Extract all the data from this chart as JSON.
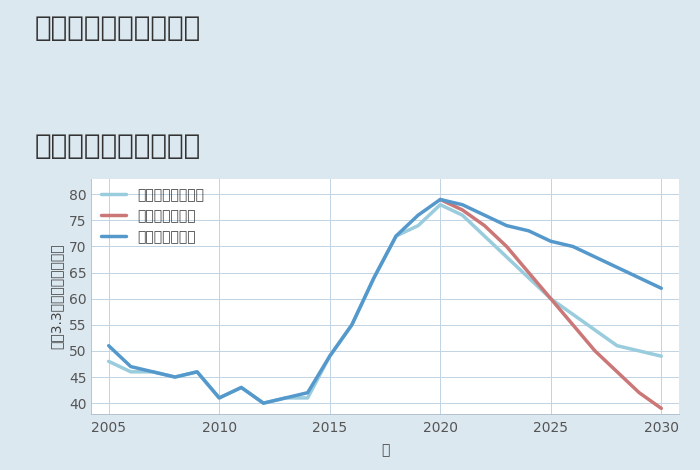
{
  "title_line1": "大阪府枚方市渚南町の",
  "title_line2": "中古戸建ての価格推移",
  "xlabel": "年",
  "ylabel": "坪（3.3㎡）単価（万円）",
  "outer_bg": "#dce8f0",
  "plot_bg": "#ffffff",
  "grid_color": "#c0d4e4",
  "good_scenario": {
    "label": "グッドシナリオ",
    "color": "#5599cc",
    "years": [
      2005,
      2006,
      2007,
      2008,
      2009,
      2010,
      2011,
      2012,
      2013,
      2014,
      2015,
      2016,
      2017,
      2018,
      2019,
      2020,
      2021,
      2022,
      2023,
      2024,
      2025,
      2026,
      2027,
      2028,
      2029,
      2030
    ],
    "values": [
      51,
      47,
      46,
      45,
      46,
      41,
      43,
      40,
      41,
      42,
      49,
      55,
      64,
      72,
      76,
      79,
      78,
      76,
      74,
      73,
      71,
      70,
      68,
      66,
      64,
      62
    ]
  },
  "bad_scenario": {
    "label": "バッドシナリオ",
    "color": "#cc7777",
    "years": [
      2020,
      2021,
      2022,
      2023,
      2024,
      2025,
      2026,
      2027,
      2028,
      2029,
      2030
    ],
    "values": [
      79,
      77,
      74,
      70,
      65,
      60,
      55,
      50,
      46,
      42,
      39
    ]
  },
  "normal_scenario": {
    "label": "ノーマルシナリオ",
    "color": "#99ccdd",
    "years": [
      2005,
      2006,
      2007,
      2008,
      2009,
      2010,
      2011,
      2012,
      2013,
      2014,
      2015,
      2016,
      2017,
      2018,
      2019,
      2020,
      2021,
      2022,
      2023,
      2024,
      2025,
      2026,
      2027,
      2028,
      2029,
      2030
    ],
    "values": [
      48,
      46,
      46,
      45,
      46,
      41,
      43,
      40,
      41,
      41,
      49,
      55,
      64,
      72,
      74,
      78,
      76,
      72,
      68,
      64,
      60,
      57,
      54,
      51,
      50,
      49
    ]
  },
  "xlim": [
    2004.2,
    2030.8
  ],
  "ylim": [
    38,
    83
  ],
  "xticks": [
    2005,
    2010,
    2015,
    2020,
    2025,
    2030
  ],
  "yticks": [
    40,
    45,
    50,
    55,
    60,
    65,
    70,
    75,
    80
  ],
  "title_fontsize": 20,
  "axis_fontsize": 10,
  "tick_fontsize": 10,
  "legend_fontsize": 10,
  "linewidth": 2.5
}
